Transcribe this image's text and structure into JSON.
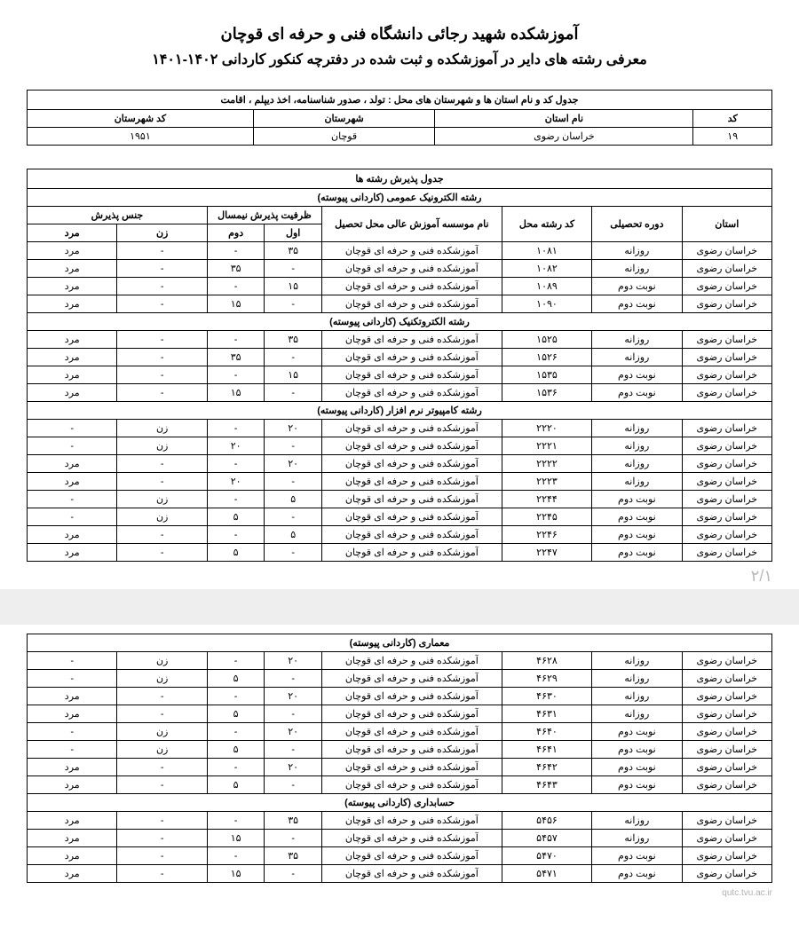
{
  "title": "آموزشکده شهید رجائی دانشگاه فنی و حرفه ای قوچان",
  "subtitle": "معرفی رشته های دایر در آموزشکده و ثبت شده در دفترچه کنکور کاردانی ۱۴۰۲-۱۴۰۱",
  "location_table": {
    "caption": "جدول کد و نام استان ها و شهرستان های محل : تولد ، صدور شناسنامه، اخذ دیپلم ، اقامت",
    "headers": {
      "code": "کد",
      "province": "نام استان",
      "city": "شهرستان",
      "city_code": "کد شهرستان"
    },
    "row": {
      "code": "۱۹",
      "province": "خراسان رضوی",
      "city": "قوچان",
      "city_code": "۱۹۵۱"
    }
  },
  "admission_table_caption": "جدول پذیرش رشته ها",
  "column_headers": {
    "province": "استان",
    "period": "دوره تحصیلی",
    "major_code": "کد رشته محل",
    "institute": "نام موسسه آموزش عالی محل تحصیل",
    "capacity": "ظرفیت پذیرش نیمسال",
    "first": "اول",
    "second": "دوم",
    "gender": "جنس پذیرش",
    "female": "زن",
    "male": "مرد"
  },
  "common": {
    "province": "خراسان رضوی",
    "institute": "آموزشکده فنی و حرفه ای قوچان",
    "daily": "روزانه",
    "evening": "نوبت دوم",
    "male": "مرد",
    "female": "زن",
    "dash": "-"
  },
  "sections_p1": [
    {
      "name": "رشته الکترونیک عمومی (کاردانی پیوسته)",
      "rows": [
        {
          "period": "روزانه",
          "code": "۱۰۸۱",
          "first": "۳۵",
          "second": "-",
          "female": "-",
          "male": "مرد"
        },
        {
          "period": "روزانه",
          "code": "۱۰۸۲",
          "first": "-",
          "second": "۳۵",
          "female": "-",
          "male": "مرد"
        },
        {
          "period": "نوبت دوم",
          "code": "۱۰۸۹",
          "first": "۱۵",
          "second": "-",
          "female": "-",
          "male": "مرد"
        },
        {
          "period": "نوبت دوم",
          "code": "۱۰۹۰",
          "first": "-",
          "second": "۱۵",
          "female": "-",
          "male": "مرد"
        }
      ]
    },
    {
      "name": "رشته الکتروتکنیک (کاردانی پیوسته)",
      "rows": [
        {
          "period": "روزانه",
          "code": "۱۵۲۵",
          "first": "۳۵",
          "second": "-",
          "female": "-",
          "male": "مرد"
        },
        {
          "period": "روزانه",
          "code": "۱۵۲۶",
          "first": "-",
          "second": "۳۵",
          "female": "-",
          "male": "مرد"
        },
        {
          "period": "نوبت دوم",
          "code": "۱۵۳۵",
          "first": "۱۵",
          "second": "-",
          "female": "-",
          "male": "مرد"
        },
        {
          "period": "نوبت دوم",
          "code": "۱۵۳۶",
          "first": "-",
          "second": "۱۵",
          "female": "-",
          "male": "مرد"
        }
      ]
    },
    {
      "name": "رشته کامپیوتر نرم افزار (کاردانی پیوسته)",
      "rows": [
        {
          "period": "روزانه",
          "code": "۲۲۲۰",
          "first": "۲۰",
          "second": "-",
          "female": "زن",
          "male": "-"
        },
        {
          "period": "روزانه",
          "code": "۲۲۲۱",
          "first": "-",
          "second": "۲۰",
          "female": "زن",
          "male": "-"
        },
        {
          "period": "روزانه",
          "code": "۲۲۲۲",
          "first": "۲۰",
          "second": "-",
          "female": "-",
          "male": "مرد"
        },
        {
          "period": "روزانه",
          "code": "۲۲۲۳",
          "first": "-",
          "second": "۲۰",
          "female": "-",
          "male": "مرد"
        },
        {
          "period": "نوبت دوم",
          "code": "۲۲۴۴",
          "first": "۵",
          "second": "-",
          "female": "زن",
          "male": "-"
        },
        {
          "period": "نوبت دوم",
          "code": "۲۲۴۵",
          "first": "-",
          "second": "۵",
          "female": "زن",
          "male": "-"
        },
        {
          "period": "نوبت دوم",
          "code": "۲۲۴۶",
          "first": "۵",
          "second": "-",
          "female": "-",
          "male": "مرد"
        },
        {
          "period": "نوبت دوم",
          "code": "۲۲۴۷",
          "first": "-",
          "second": "۵",
          "female": "-",
          "male": "مرد"
        }
      ]
    }
  ],
  "page_num": "۲/۱",
  "sections_p2": [
    {
      "name": "معماری (کاردانی پیوسته)",
      "rows": [
        {
          "period": "روزانه",
          "code": "۴۶۲۸",
          "first": "۲۰",
          "second": "-",
          "female": "زن",
          "male": "-"
        },
        {
          "period": "روزانه",
          "code": "۴۶۲۹",
          "first": "-",
          "second": "۵",
          "female": "زن",
          "male": "-"
        },
        {
          "period": "روزانه",
          "code": "۴۶۳۰",
          "first": "۲۰",
          "second": "-",
          "female": "-",
          "male": "مرد"
        },
        {
          "period": "روزانه",
          "code": "۴۶۳۱",
          "first": "-",
          "second": "۵",
          "female": "-",
          "male": "مرد"
        },
        {
          "period": "نوبت دوم",
          "code": "۴۶۴۰",
          "first": "۲۰",
          "second": "-",
          "female": "زن",
          "male": "-"
        },
        {
          "period": "نوبت دوم",
          "code": "۴۶۴۱",
          "first": "-",
          "second": "۵",
          "female": "زن",
          "male": "-"
        },
        {
          "period": "نوبت دوم",
          "code": "۴۶۴۲",
          "first": "۲۰",
          "second": "-",
          "female": "-",
          "male": "مرد"
        },
        {
          "period": "نوبت دوم",
          "code": "۴۶۴۳",
          "first": "-",
          "second": "۵",
          "female": "-",
          "male": "مرد"
        }
      ]
    },
    {
      "name": "حسابداری (کاردانی پیوسته)",
      "rows": [
        {
          "period": "روزانه",
          "code": "۵۴۵۶",
          "first": "۳۵",
          "second": "-",
          "female": "-",
          "male": "مرد"
        },
        {
          "period": "روزانه",
          "code": "۵۴۵۷",
          "first": "-",
          "second": "۱۵",
          "female": "-",
          "male": "مرد"
        },
        {
          "period": "نوبت دوم",
          "code": "۵۴۷۰",
          "first": "۳۵",
          "second": "-",
          "female": "-",
          "male": "مرد"
        },
        {
          "period": "نوبت دوم",
          "code": "۵۴۷۱",
          "first": "-",
          "second": "۱۵",
          "female": "-",
          "male": "مرد"
        }
      ]
    }
  ],
  "footer": "qutc.tvu.ac.ir"
}
